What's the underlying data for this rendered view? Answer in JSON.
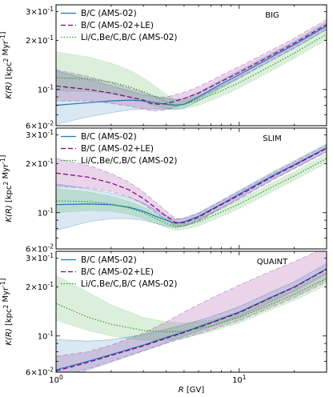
{
  "chart_data": {
    "type": "line",
    "shared_xlabel": "R [GV]",
    "x_ticks": [
      {
        "value": 1,
        "label": "10^0"
      },
      {
        "value": 10,
        "label": "10^1"
      }
    ],
    "xlim": [
      1,
      30
    ],
    "xscale": "log",
    "yscale": "log",
    "colors": {
      "B/C (AMS-02)": "#1f77b4",
      "B/C (AMS-02+LE)": "#800080",
      "Li/C,Be/C,B/C (AMS-02)": "#2ca02c"
    },
    "panels": [
      {
        "model": "BIG",
        "ylabel": "K(R) [kpc^2 Myr^-1]",
        "ylim": [
          0.06,
          0.33
        ],
        "y_ticks": [
          {
            "value": 0.06,
            "label": "6×10^-2"
          },
          {
            "value": 0.1,
            "label": "10^-1"
          },
          {
            "value": 0.2,
            "label": "2×10^-1"
          },
          {
            "value": 0.3,
            "label": "3×10^-1"
          }
        ],
        "legend_placement": "top-left",
        "series": [
          {
            "name": "B/C (AMS-02)",
            "style": "solid",
            "x": [
              1,
              1.5,
              2,
              2.5,
              3,
              3.5,
              4,
              4.5,
              5,
              6,
              8,
              10,
              15,
              20,
              30
            ],
            "y": [
              0.08,
              0.083,
              0.085,
              0.086,
              0.085,
              0.083,
              0.081,
              0.08,
              0.081,
              0.09,
              0.108,
              0.123,
              0.158,
              0.188,
              0.245
            ],
            "band_low": [
              0.061,
              0.068,
              0.072,
              0.075,
              0.076,
              0.076,
              0.076,
              0.076,
              0.077,
              0.085,
              0.102,
              0.117,
              0.15,
              0.179,
              0.232
            ],
            "band_high": [
              0.13,
              0.115,
              0.105,
              0.098,
              0.093,
              0.09,
              0.088,
              0.087,
              0.088,
              0.096,
              0.114,
              0.13,
              0.166,
              0.197,
              0.258
            ]
          },
          {
            "name": "B/C (AMS-02+LE)",
            "style": "dashed",
            "x": [
              1,
              1.5,
              2,
              2.5,
              3,
              3.3,
              3.7,
              4,
              4.5,
              5,
              6,
              8,
              10,
              15,
              20,
              30
            ],
            "y": [
              0.105,
              0.1,
              0.095,
              0.09,
              0.086,
              0.082,
              0.081,
              0.082,
              0.085,
              0.088,
              0.095,
              0.112,
              0.127,
              0.162,
              0.192,
              0.25
            ],
            "band_low": [
              0.085,
              0.085,
              0.082,
              0.079,
              0.076,
              0.074,
              0.074,
              0.075,
              0.078,
              0.081,
              0.088,
              0.104,
              0.118,
              0.152,
              0.18,
              0.236
            ],
            "band_high": [
              0.132,
              0.12,
              0.11,
              0.102,
              0.096,
              0.092,
              0.09,
              0.09,
              0.093,
              0.096,
              0.104,
              0.122,
              0.138,
              0.174,
              0.206,
              0.268
            ]
          },
          {
            "name": "Li/C,Be/C,B/C (AMS-02)",
            "style": "dotted",
            "x": [
              1,
              1.5,
              2,
              2.5,
              3,
              3.5,
              4,
              4.5,
              5,
              6,
              8,
              10,
              15,
              20,
              30
            ],
            "y": [
              0.118,
              0.116,
              0.111,
              0.104,
              0.097,
              0.09,
              0.084,
              0.08,
              0.081,
              0.086,
              0.098,
              0.11,
              0.14,
              0.167,
              0.218
            ],
            "band_low": [
              0.098,
              0.097,
              0.094,
              0.089,
              0.084,
              0.079,
              0.076,
              0.075,
              0.076,
              0.08,
              0.091,
              0.102,
              0.13,
              0.155,
              0.202
            ],
            "band_high": [
              0.17,
              0.158,
              0.145,
              0.132,
              0.118,
              0.104,
              0.093,
              0.086,
              0.086,
              0.092,
              0.105,
              0.118,
              0.15,
              0.179,
              0.234
            ]
          }
        ]
      },
      {
        "model": "SLIM",
        "ylabel": "K(R) [kpc^2 Myr^-1]",
        "ylim": [
          0.06,
          0.33
        ],
        "y_ticks": [
          {
            "value": 0.06,
            "label": "6×10^-2"
          },
          {
            "value": 0.1,
            "label": "10^-1"
          },
          {
            "value": 0.2,
            "label": "2×10^-1"
          },
          {
            "value": 0.3,
            "label": "3×10^-1"
          }
        ],
        "legend_placement": "top-left",
        "series": [
          {
            "name": "B/C (AMS-02)",
            "style": "solid",
            "x": [
              1,
              1.5,
              2,
              2.5,
              3,
              3.5,
              4,
              4.5,
              5,
              6,
              8,
              10,
              15,
              20,
              30
            ],
            "y": [
              0.112,
              0.113,
              0.112,
              0.108,
              0.102,
              0.095,
              0.09,
              0.086,
              0.088,
              0.095,
              0.113,
              0.13,
              0.167,
              0.197,
              0.25
            ],
            "band_low": [
              0.078,
              0.088,
              0.092,
              0.092,
              0.09,
              0.086,
              0.083,
              0.081,
              0.083,
              0.09,
              0.107,
              0.123,
              0.158,
              0.187,
              0.236
            ],
            "band_high": [
              0.15,
              0.14,
              0.132,
              0.124,
              0.115,
              0.104,
              0.096,
              0.091,
              0.093,
              0.1,
              0.119,
              0.137,
              0.176,
              0.208,
              0.264
            ]
          },
          {
            "name": "B/C (AMS-02+LE)",
            "style": "dashed",
            "x": [
              1,
              1.5,
              2,
              2.5,
              3,
              3.5,
              4,
              4.5,
              5,
              6,
              8,
              10,
              15,
              20,
              30
            ],
            "y": [
              0.175,
              0.165,
              0.152,
              0.138,
              0.122,
              0.107,
              0.095,
              0.087,
              0.087,
              0.094,
              0.112,
              0.128,
              0.165,
              0.195,
              0.248
            ],
            "band_low": [
              0.145,
              0.142,
              0.135,
              0.125,
              0.113,
              0.1,
              0.09,
              0.083,
              0.083,
              0.089,
              0.106,
              0.121,
              0.157,
              0.186,
              0.236
            ],
            "band_high": [
              0.215,
              0.195,
              0.174,
              0.154,
              0.134,
              0.116,
              0.102,
              0.092,
              0.092,
              0.099,
              0.118,
              0.135,
              0.173,
              0.205,
              0.26
            ]
          },
          {
            "name": "Li/C,Be/C,B/C (AMS-02)",
            "style": "dotted",
            "x": [
              1,
              1.5,
              2,
              2.5,
              3,
              3.5,
              4,
              4.5,
              5,
              6,
              8,
              10,
              15,
              20,
              30
            ],
            "y": [
              0.118,
              0.117,
              0.113,
              0.107,
              0.1,
              0.092,
              0.086,
              0.082,
              0.083,
              0.088,
              0.101,
              0.113,
              0.143,
              0.168,
              0.215
            ],
            "band_low": [
              0.1,
              0.103,
              0.102,
              0.098,
              0.092,
              0.086,
              0.081,
              0.078,
              0.079,
              0.083,
              0.095,
              0.106,
              0.134,
              0.158,
              0.202
            ],
            "band_high": [
              0.14,
              0.134,
              0.126,
              0.117,
              0.108,
              0.098,
              0.091,
              0.086,
              0.087,
              0.093,
              0.107,
              0.12,
              0.152,
              0.179,
              0.229
            ]
          }
        ]
      },
      {
        "model": "QUAINT",
        "ylabel": "K(R) [kpc^2 Myr^-1]",
        "ylim": [
          0.06,
          0.33
        ],
        "y_ticks": [
          {
            "value": 0.06,
            "label": "6×10^-2"
          },
          {
            "value": 0.1,
            "label": "10^-1"
          },
          {
            "value": 0.2,
            "label": "2×10^-1"
          },
          {
            "value": 0.3,
            "label": "3×10^-1"
          }
        ],
        "legend_placement": "top-left",
        "series": [
          {
            "name": "B/C (AMS-02)",
            "style": "solid",
            "x": [
              1,
              1.5,
              2,
              3,
              4,
              5,
              7,
              10,
              15,
              20,
              30
            ],
            "y": [
              0.062,
              0.07,
              0.077,
              0.088,
              0.098,
              0.106,
              0.121,
              0.14,
              0.173,
              0.2,
              0.258
            ],
            "band_low": [
              0.052,
              0.062,
              0.069,
              0.081,
              0.091,
              0.1,
              0.114,
              0.132,
              0.163,
              0.188,
              0.241
            ],
            "band_high": [
              0.095,
              0.093,
              0.095,
              0.102,
              0.11,
              0.117,
              0.131,
              0.151,
              0.186,
              0.215,
              0.278
            ]
          },
          {
            "name": "B/C (AMS-02+LE)",
            "style": "dashed",
            "x": [
              1,
              1.5,
              2,
              3,
              4,
              5,
              7,
              10,
              15,
              20,
              30
            ],
            "y": [
              0.061,
              0.069,
              0.076,
              0.087,
              0.097,
              0.105,
              0.12,
              0.139,
              0.172,
              0.199,
              0.256
            ],
            "band_low": [
              0.055,
              0.063,
              0.07,
              0.081,
              0.09,
              0.097,
              0.109,
              0.124,
              0.15,
              0.172,
              0.215
            ],
            "band_high": [
              0.075,
              0.08,
              0.088,
              0.104,
              0.122,
              0.14,
              0.17,
              0.205,
              0.25,
              0.285,
              0.35
            ]
          },
          {
            "name": "Li/C,Be/C,B/C (AMS-02)",
            "style": "dotted",
            "x": [
              1,
              1.5,
              2,
              3,
              4,
              5,
              7,
              10,
              15,
              20,
              30
            ],
            "y": [
              0.158,
              0.13,
              0.118,
              0.108,
              0.106,
              0.107,
              0.115,
              0.13,
              0.157,
              0.18,
              0.225
            ],
            "band_low": [
              0.125,
              0.108,
              0.1,
              0.094,
              0.094,
              0.097,
              0.106,
              0.12,
              0.145,
              0.165,
              0.205
            ],
            "band_high": [
              0.235,
              0.185,
              0.155,
              0.13,
              0.122,
              0.12,
              0.125,
              0.14,
              0.17,
              0.196,
              0.246
            ]
          }
        ]
      }
    ]
  }
}
